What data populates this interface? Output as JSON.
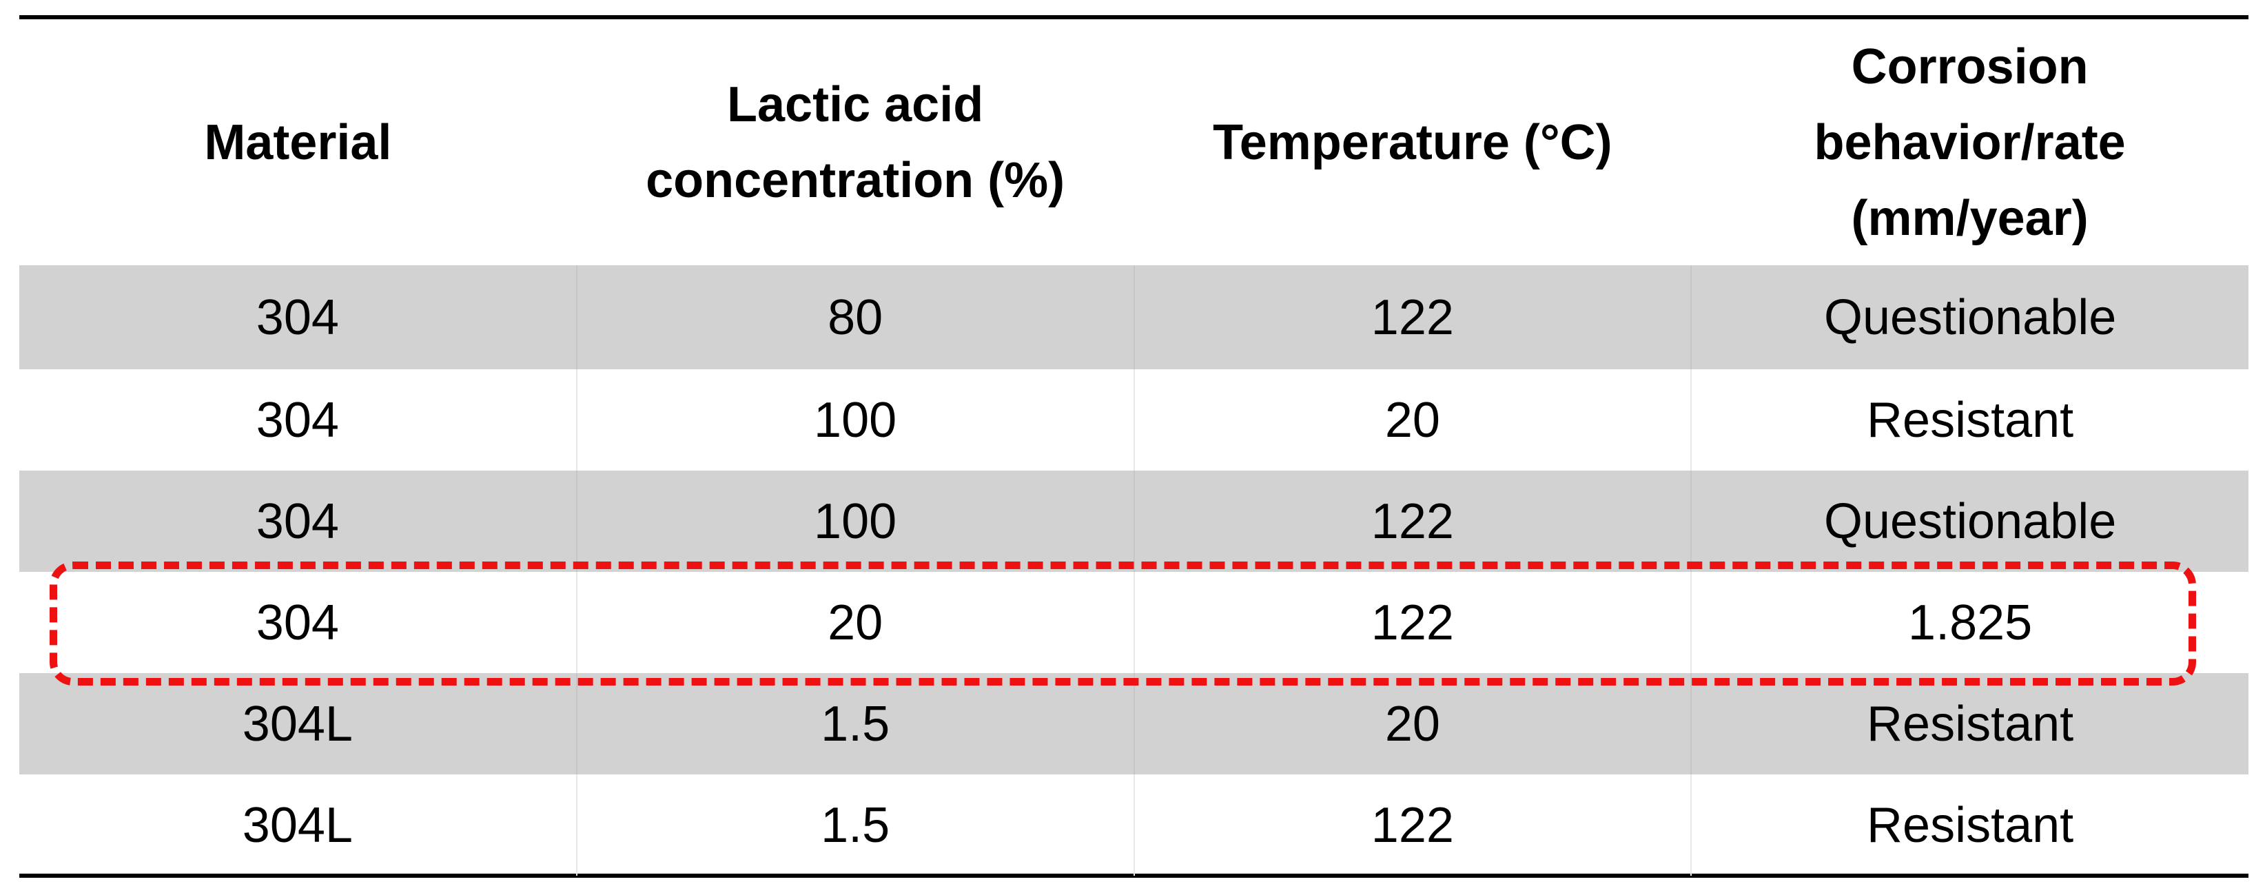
{
  "table": {
    "headers": [
      "Material",
      "Lactic acid\nconcentration (%)",
      "Temperature (°C)",
      "Corrosion\nbehavior/rate\n(mm/year)"
    ],
    "rows": [
      {
        "material": "304",
        "concentration": "80",
        "temperature": "122",
        "corrosion": "Questionable",
        "shaded": true
      },
      {
        "material": "304",
        "concentration": "100",
        "temperature": "20",
        "corrosion": "Resistant",
        "shaded": false
      },
      {
        "material": "304",
        "concentration": "100",
        "temperature": "122",
        "corrosion": "Questionable",
        "shaded": true
      },
      {
        "material": "304",
        "concentration": "20",
        "temperature": "122",
        "corrosion": "1.825",
        "shaded": false,
        "highlighted": true
      },
      {
        "material": "304L",
        "concentration": "1.5",
        "temperature": "20",
        "corrosion": "Resistant",
        "shaded": true
      },
      {
        "material": "304L",
        "concentration": "1.5",
        "temperature": "122",
        "corrosion": "Resistant",
        "shaded": false
      }
    ]
  },
  "colors": {
    "shaded_row": "#d2d2d2",
    "highlight_border": "#ee1111",
    "rule": "#000000"
  }
}
